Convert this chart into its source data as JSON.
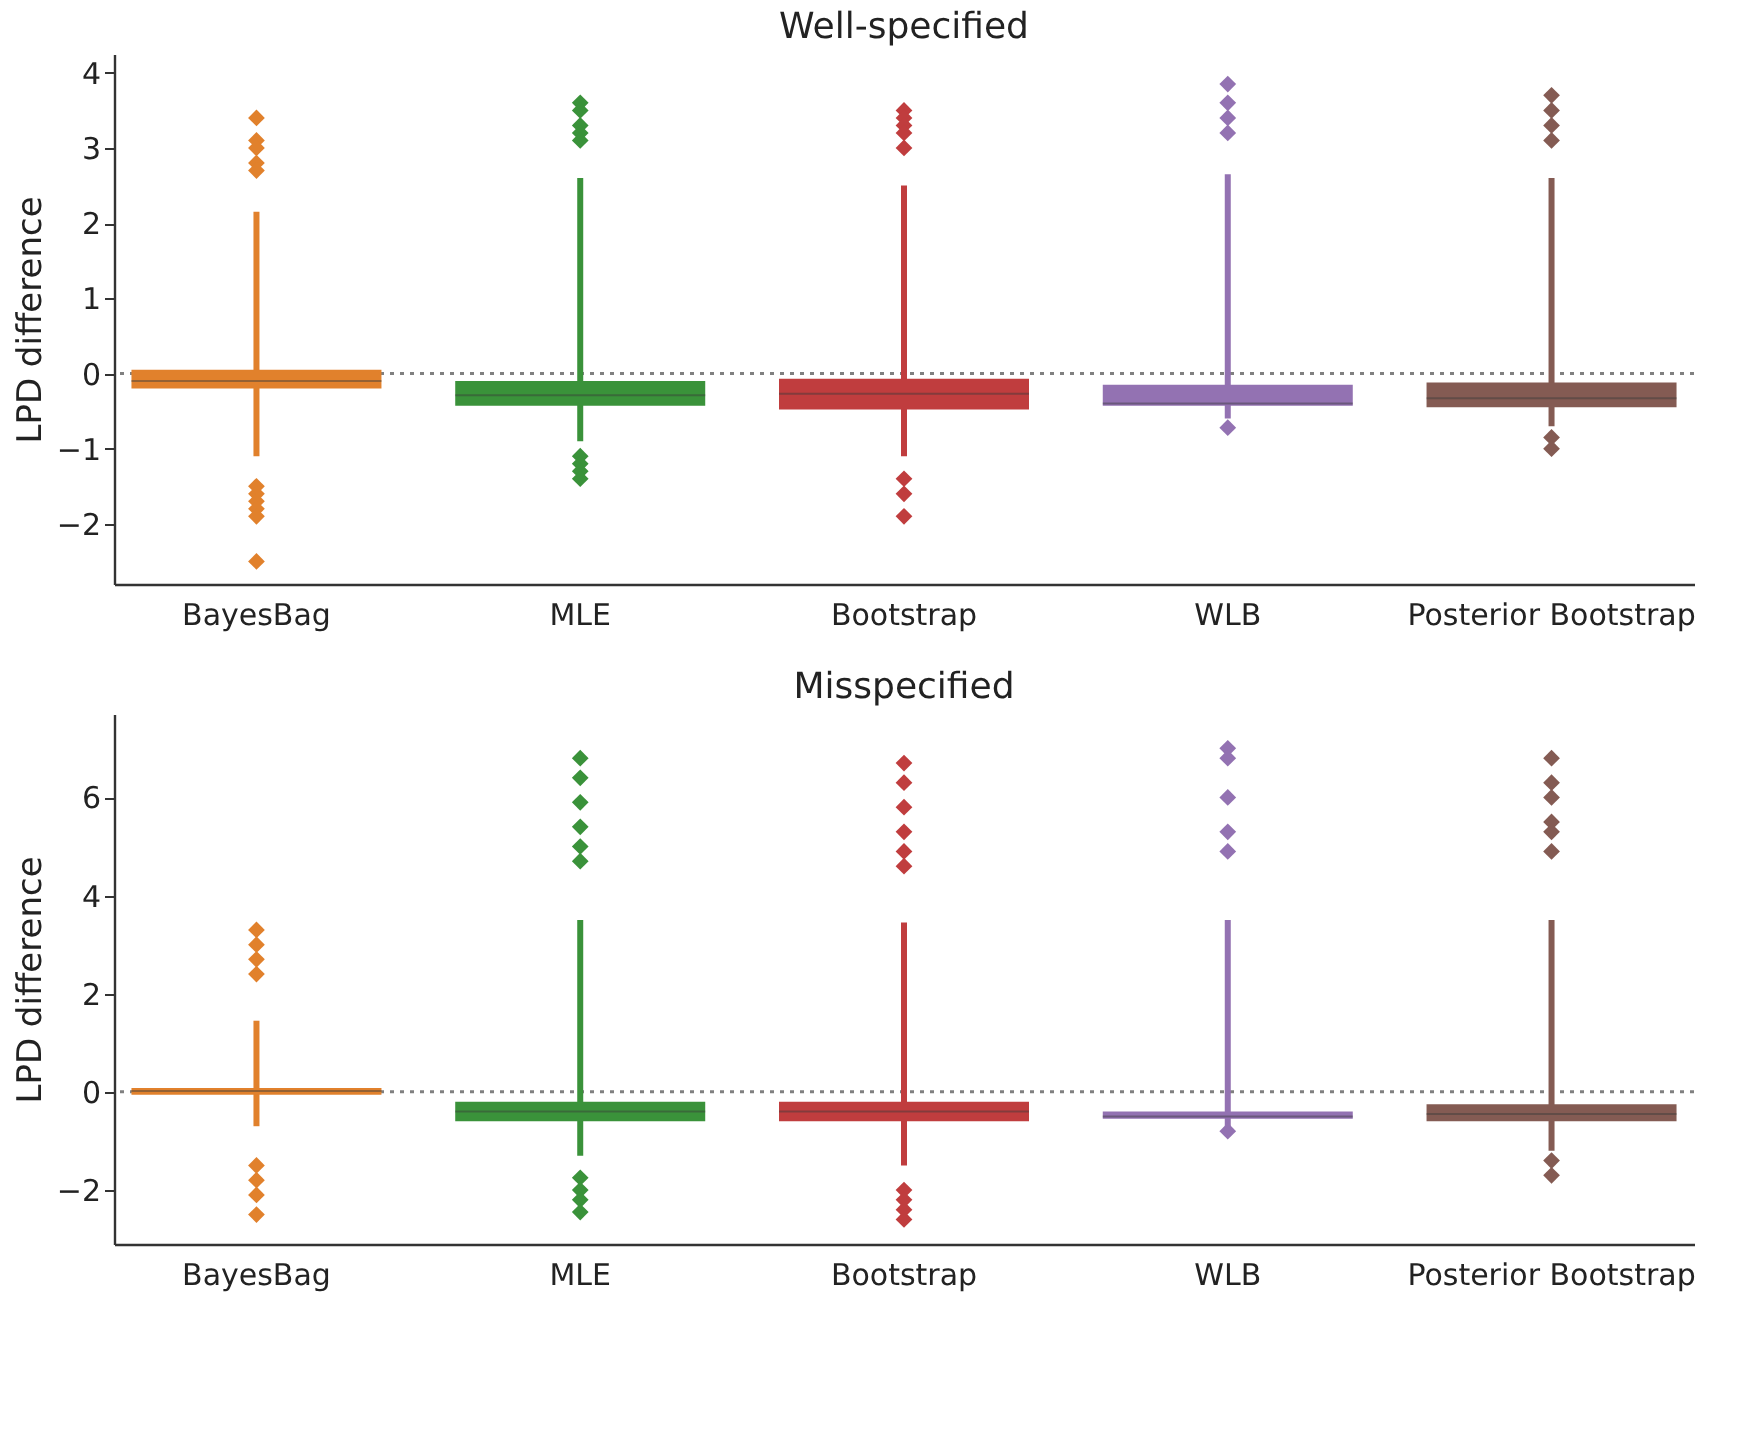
{
  "chart_data": [
    {
      "type": "box",
      "title": "Well-specified",
      "ylabel": "LPD difference",
      "categories": [
        "BayesBag",
        "MLE",
        "Bootstrap",
        "WLB",
        "Posterior Bootstrap"
      ],
      "colors": [
        "#e1812c",
        "#3a923a",
        "#c03d3e",
        "#9372b2",
        "#845b53"
      ],
      "boxes": [
        {
          "low": -1.1,
          "q1": -0.2,
          "median": -0.1,
          "q3": 0.05,
          "high": 2.15,
          "outliers": [
            3.4,
            3.1,
            3.0,
            2.8,
            2.7,
            -1.5,
            -1.6,
            -1.7,
            -1.8,
            -1.9,
            -2.5
          ]
        },
        {
          "low": -0.9,
          "q1": -0.43,
          "median": -0.29,
          "q3": -0.1,
          "high": 2.6,
          "outliers": [
            3.6,
            3.5,
            3.3,
            3.2,
            3.1,
            -1.1,
            -1.2,
            -1.3,
            -1.4
          ]
        },
        {
          "low": -1.1,
          "q1": -0.48,
          "median": -0.27,
          "q3": -0.07,
          "high": 2.5,
          "outliers": [
            3.5,
            3.4,
            3.3,
            3.2,
            3.0,
            -1.4,
            -1.6,
            -1.9
          ]
        },
        {
          "low": -0.6,
          "q1": -0.43,
          "median": -0.4,
          "q3": -0.15,
          "high": 2.65,
          "outliers": [
            3.85,
            3.6,
            3.4,
            3.2,
            -0.72
          ]
        },
        {
          "low": -0.7,
          "q1": -0.45,
          "median": -0.33,
          "q3": -0.12,
          "high": 2.6,
          "outliers": [
            3.7,
            3.5,
            3.3,
            3.1,
            -0.85,
            -1.0
          ]
        }
      ],
      "ylim": [
        -2.8,
        4.25
      ],
      "yticks": [
        -2,
        -1,
        0,
        1,
        2,
        3,
        4
      ],
      "grid": false,
      "legend": false,
      "marker": "diamond",
      "ref_lines": [
        {
          "axis": "y",
          "value": 0,
          "color": "#808080",
          "line_style": "dotted"
        }
      ]
    },
    {
      "type": "box",
      "title": "Misspecified",
      "ylabel": "LPD difference",
      "categories": [
        "BayesBag",
        "MLE",
        "Bootstrap",
        "WLB",
        "Posterior Bootstrap"
      ],
      "colors": [
        "#e1812c",
        "#3a923a",
        "#c03d3e",
        "#9372b2",
        "#845b53"
      ],
      "boxes": [
        {
          "low": -0.7,
          "q1": -0.06,
          "median": 0.02,
          "q3": 0.08,
          "high": 1.45,
          "outliers": [
            3.3,
            3.0,
            2.7,
            2.4,
            -1.5,
            -1.8,
            -2.1,
            -2.5
          ]
        },
        {
          "low": -1.3,
          "q1": -0.6,
          "median": -0.4,
          "q3": -0.2,
          "high": 3.5,
          "outliers": [
            6.8,
            6.4,
            5.9,
            5.4,
            5.0,
            4.7,
            -1.75,
            -2.0,
            -2.2,
            -2.45
          ]
        },
        {
          "low": -1.5,
          "q1": -0.6,
          "median": -0.4,
          "q3": -0.2,
          "high": 3.45,
          "outliers": [
            6.7,
            6.3,
            5.8,
            5.3,
            4.9,
            4.6,
            -2.0,
            -2.2,
            -2.4,
            -2.6
          ]
        },
        {
          "low": -0.7,
          "q1": -0.55,
          "median": -0.5,
          "q3": -0.4,
          "high": 3.5,
          "outliers": [
            7.0,
            6.8,
            6.0,
            5.3,
            4.9,
            -0.8
          ]
        },
        {
          "low": -1.2,
          "q1": -0.6,
          "median": -0.45,
          "q3": -0.25,
          "high": 3.5,
          "outliers": [
            6.8,
            6.3,
            6.0,
            5.5,
            5.3,
            4.9,
            -1.4,
            -1.7
          ]
        }
      ],
      "ylim": [
        -3.1,
        7.7
      ],
      "yticks": [
        -2,
        0,
        2,
        4,
        6
      ],
      "grid": false,
      "legend": false,
      "marker": "diamond",
      "ref_lines": [
        {
          "axis": "y",
          "value": 0,
          "color": "#808080",
          "line_style": "dotted"
        }
      ]
    }
  ]
}
